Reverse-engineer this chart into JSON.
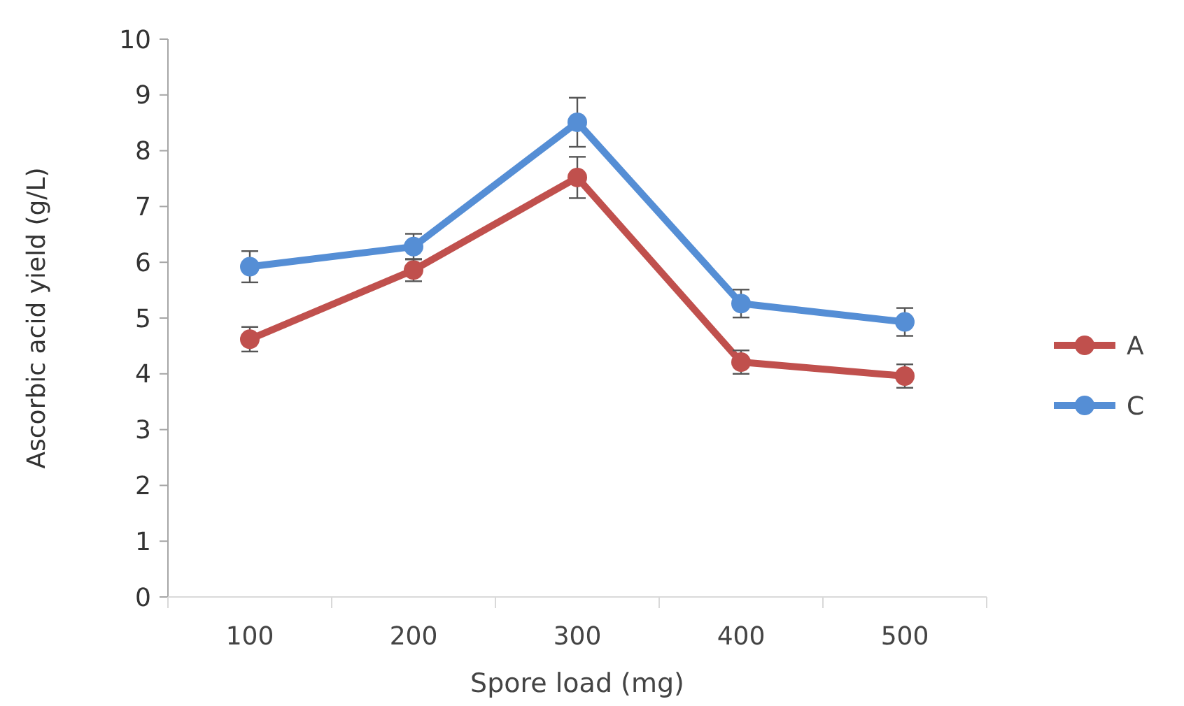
{
  "chart_data": {
    "type": "line",
    "xlabel": "Spore load (mg)",
    "ylabel": "Ascorbic acid yield (g/L)",
    "categories": [
      "100",
      "200",
      "300",
      "400",
      "500"
    ],
    "series": [
      {
        "name": "A",
        "color": "#c0504d",
        "values": [
          4.62,
          5.86,
          7.52,
          4.21,
          3.96
        ],
        "errors": [
          0.22,
          0.2,
          0.37,
          0.21,
          0.21
        ]
      },
      {
        "name": "C",
        "color": "#558ed5",
        "values": [
          5.92,
          6.28,
          8.51,
          5.26,
          4.93
        ],
        "errors": [
          0.28,
          0.23,
          0.44,
          0.25,
          0.25
        ]
      }
    ],
    "ylim": [
      0,
      10
    ],
    "yticks": [
      0,
      1,
      2,
      3,
      4,
      5,
      6,
      7,
      8,
      9,
      10
    ],
    "grid": false,
    "legend": "right",
    "marker": "circle",
    "line_style": "solid"
  }
}
